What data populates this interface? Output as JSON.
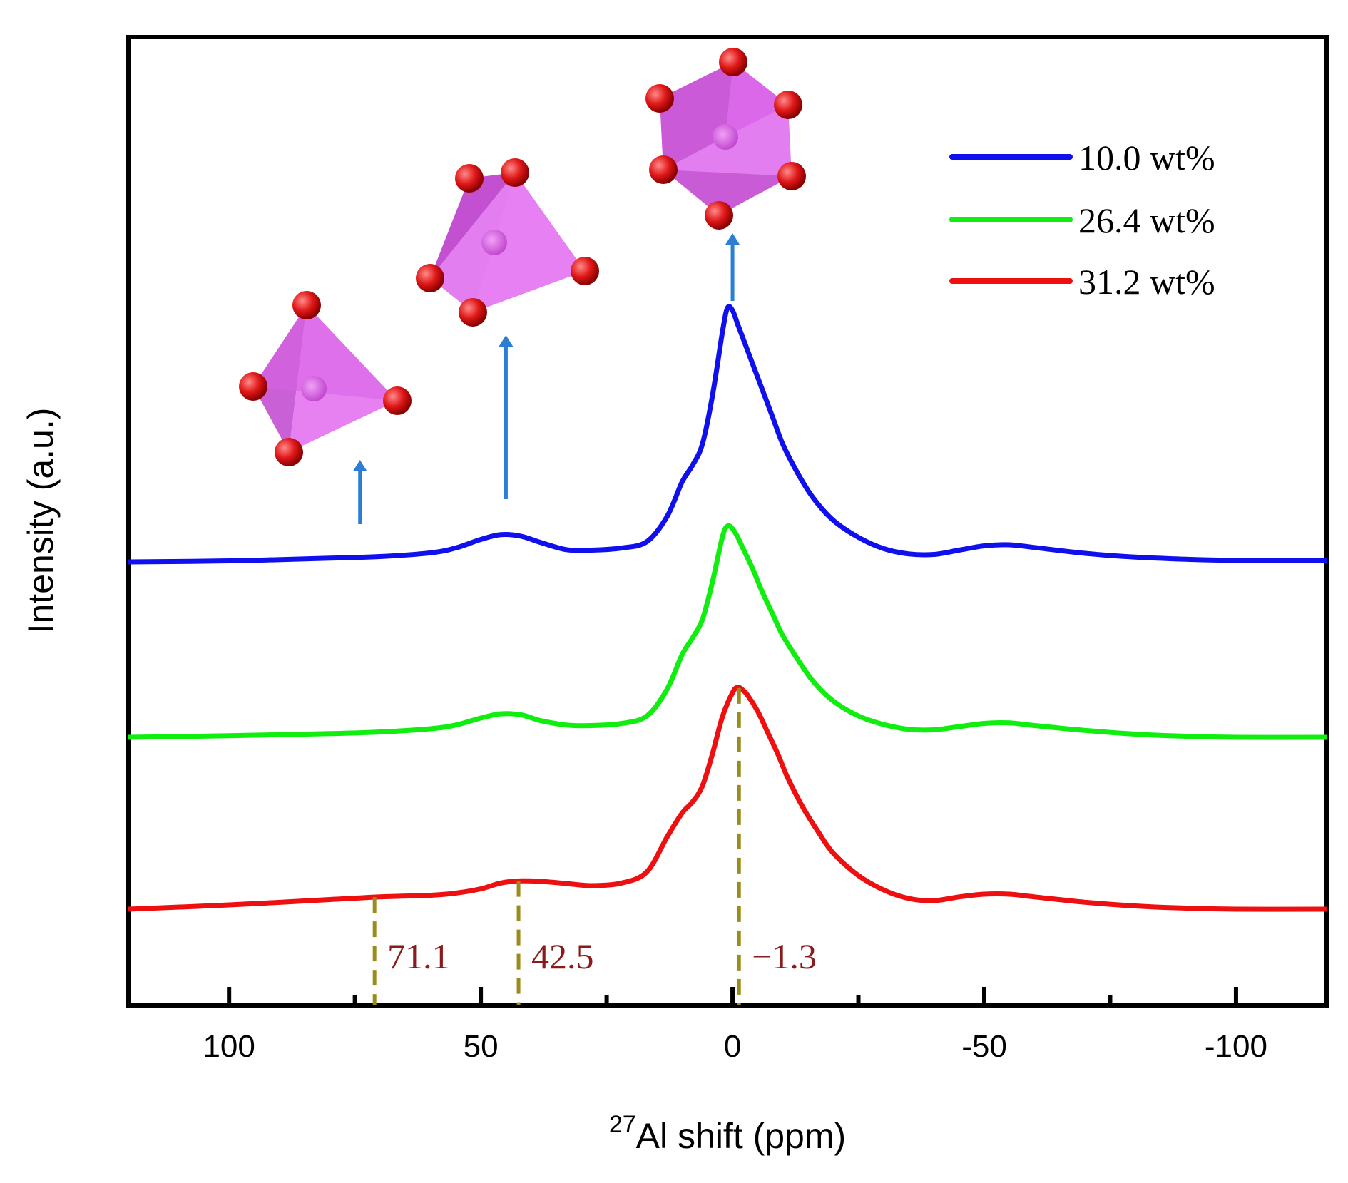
{
  "chart_data": {
    "type": "line",
    "xlabel_sup": "27",
    "xlabel_main": "Al shift (ppm)",
    "ylabel": "Intensity (a.u.)",
    "xlim": [
      120,
      -118
    ],
    "xticks": [
      {
        "value": 100,
        "label": "100"
      },
      {
        "value": 50,
        "label": "50"
      },
      {
        "value": 0,
        "label": "0"
      },
      {
        "value": -50,
        "label": "-50"
      },
      {
        "value": -100,
        "label": "-100"
      }
    ],
    "minor_xticks": [
      75,
      25,
      -25,
      -75
    ],
    "series": [
      {
        "name": "10.0 wt%",
        "color": "#1010ee",
        "x": [
          120,
          100,
          80,
          70,
          60,
          55,
          50,
          46,
          42,
          38,
          33,
          28,
          22,
          17,
          13,
          10,
          8,
          6,
          4,
          2,
          1,
          0,
          -1,
          -2,
          -4,
          -6,
          -8,
          -10,
          -13,
          -16,
          -20,
          -25,
          -30,
          -35,
          -40,
          -45,
          -50,
          -55,
          -60,
          -70,
          -80,
          -90,
          -100,
          -118
        ],
        "values": [
          0.0,
          0.2,
          0.7,
          1.0,
          1.7,
          2.6,
          4.2,
          5.1,
          4.8,
          3.6,
          2.3,
          2.2,
          2.6,
          3.8,
          8.5,
          15.0,
          18.0,
          22.0,
          31.0,
          43.0,
          47.5,
          47.0,
          44.5,
          42.0,
          37.0,
          32.0,
          27.0,
          22.0,
          16.5,
          12.0,
          7.8,
          4.6,
          2.5,
          1.5,
          1.4,
          2.2,
          3.0,
          3.2,
          2.7,
          1.6,
          0.9,
          0.5,
          0.3,
          0.3
        ]
      },
      {
        "name": "26.4 wt%",
        "color": "#10ee10",
        "x": [
          120,
          100,
          80,
          70,
          60,
          55,
          50,
          46,
          42,
          38,
          33,
          28,
          22,
          17,
          13,
          10,
          8,
          6,
          4,
          2,
          1,
          0,
          -1,
          -2,
          -4,
          -6,
          -8,
          -10,
          -13,
          -16,
          -20,
          -25,
          -30,
          -35,
          -40,
          -45,
          -50,
          -55,
          -60,
          -70,
          -80,
          -90,
          -100,
          -118
        ],
        "values": [
          0.0,
          0.3,
          0.7,
          1.0,
          1.6,
          2.3,
          3.6,
          4.4,
          4.2,
          3.1,
          2.3,
          2.2,
          2.6,
          4.0,
          9.0,
          15.5,
          18.5,
          22.0,
          29.0,
          37.5,
          39.5,
          39.0,
          37.5,
          35.5,
          31.5,
          27.0,
          23.0,
          19.0,
          14.5,
          10.5,
          6.8,
          4.0,
          2.4,
          1.5,
          1.4,
          2.0,
          2.6,
          2.7,
          2.2,
          1.3,
          0.6,
          0.2,
          0.0,
          0.0
        ]
      },
      {
        "name": "31.2 wt%",
        "color": "#ee1010",
        "x": [
          120,
          100,
          80,
          70,
          60,
          55,
          50,
          46,
          42,
          38,
          33,
          28,
          22,
          17,
          13,
          10,
          8,
          6,
          4,
          2,
          0,
          -1,
          -2,
          -3,
          -5,
          -7,
          -9,
          -11,
          -14,
          -17,
          -20,
          -25,
          -30,
          -35,
          -40,
          -45,
          -50,
          -55,
          -60,
          -70,
          -80,
          -90,
          -100,
          -118
        ],
        "values": [
          0.0,
          0.8,
          1.8,
          2.3,
          2.6,
          3.0,
          3.8,
          4.9,
          5.3,
          5.2,
          4.8,
          4.4,
          4.9,
          7.0,
          13.5,
          18.0,
          20.0,
          23.0,
          29.0,
          36.0,
          40.5,
          41.5,
          41.0,
          40.0,
          37.0,
          33.0,
          29.0,
          24.5,
          19.0,
          14.5,
          10.5,
          6.3,
          3.6,
          2.0,
          1.6,
          2.3,
          2.8,
          2.8,
          2.3,
          1.3,
          0.6,
          0.2,
          0.0,
          0.0
        ]
      }
    ],
    "annotations": {
      "peak_labels": [
        {
          "position": 71.1,
          "text": "71.1"
        },
        {
          "position": 42.5,
          "text": "42.5"
        },
        {
          "position": -1.3,
          "text": "−1.3"
        }
      ],
      "arrows": [
        {
          "position": 74,
          "meaning": "tetrahedral AlO4"
        },
        {
          "position": 45,
          "meaning": "pentahedral AlO5"
        },
        {
          "position": 0,
          "meaning": "octahedral AlO6"
        }
      ]
    },
    "legend": {
      "placement": "top-right",
      "entries": [
        "10.0 wt%",
        "26.4 wt%",
        "31.2 wt%"
      ]
    }
  },
  "colors": {
    "axis": "#000000",
    "arrow": "#2a7fd4",
    "dashed_marker": "#9a8c1a",
    "peak_label": "#8b1a1a",
    "polyhedron_fill": "#e060ee",
    "oxygen_atom": "#e01818"
  }
}
